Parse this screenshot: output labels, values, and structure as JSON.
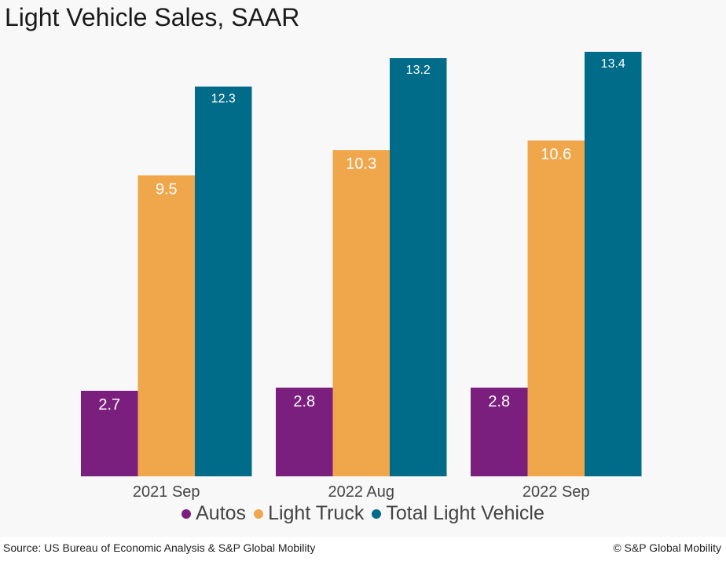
{
  "title": "Light Vehicle Sales, SAAR",
  "source": "Source: US Bureau of Economic Analysis & S&P Global Mobility",
  "copyright": "© S&P Global Mobility",
  "legend": [
    {
      "label": "Autos",
      "color": "#7b1f7f"
    },
    {
      "label": "Light Truck",
      "color": "#f0a64a"
    },
    {
      "label": "Total Light Vehicle",
      "color": "#006c89"
    }
  ],
  "chart_data": {
    "type": "bar",
    "title": "Light Vehicle Sales, SAAR",
    "categories": [
      "2021 Sep",
      "2022 Aug",
      "2022 Sep"
    ],
    "series": [
      {
        "name": "Autos",
        "values": [
          2.7,
          2.8,
          2.8
        ],
        "color": "#7b1f7f"
      },
      {
        "name": "Light Truck",
        "values": [
          9.5,
          10.3,
          10.6
        ],
        "color": "#f0a64a"
      },
      {
        "name": "Total Light Vehicle",
        "values": [
          12.3,
          13.2,
          13.4
        ],
        "color": "#006c89"
      }
    ],
    "ylim": [
      0,
      13.4
    ],
    "grid": false,
    "legend_position": "bottom",
    "data_labels": true
  }
}
